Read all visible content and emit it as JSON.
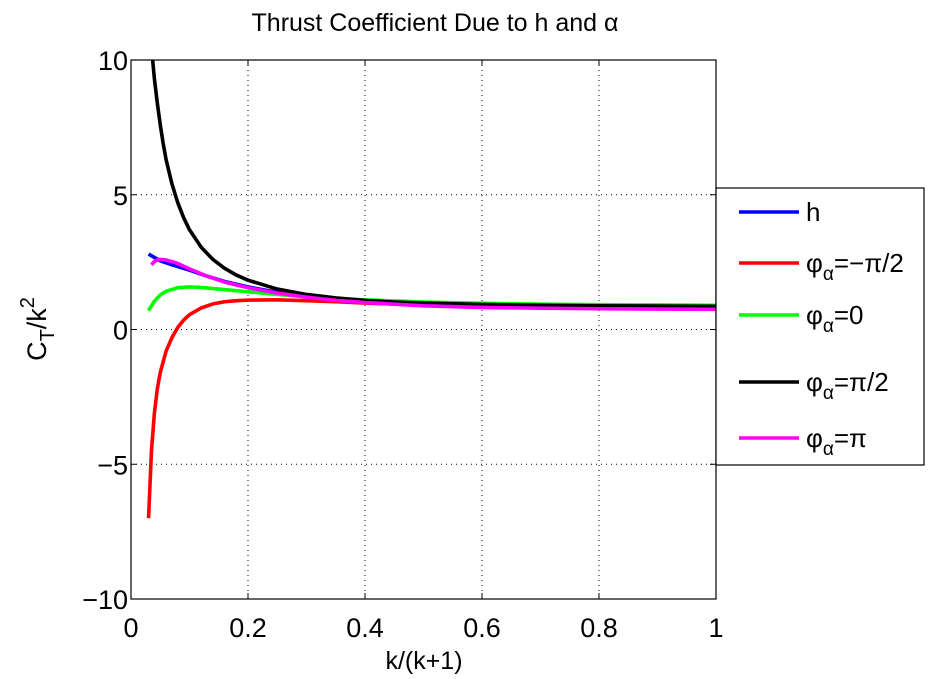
{
  "chart_data": {
    "type": "line",
    "title_parts": {
      "pre": "Thrust Coefficient Due to h and ",
      "sym": "α"
    },
    "xlabel": "k/(k+1)",
    "ylabel_parts": {
      "c": "C",
      "csub": "T",
      "mid": "/k",
      "sup": "2"
    },
    "xlim": [
      0,
      1
    ],
    "ylim": [
      -10,
      10
    ],
    "x_ticks": [
      0,
      0.2,
      0.4,
      0.6,
      0.8,
      1
    ],
    "x_tick_labels": [
      "0",
      "0.2",
      "0.4",
      "0.6",
      "0.8",
      "1"
    ],
    "y_ticks": [
      -10,
      -5,
      0,
      5,
      10
    ],
    "y_tick_labels": [
      "−10",
      "−5",
      "0",
      "5",
      "10"
    ],
    "grid": true,
    "legend_placement": "outside-right",
    "series": [
      {
        "name": "h",
        "legend": {
          "base": "h",
          "sub": "",
          "suffix": ""
        },
        "color": "#0000ff",
        "x": [
          0.03,
          0.05,
          0.07,
          0.1,
          0.13,
          0.16,
          0.2,
          0.25,
          0.3,
          0.35,
          0.4,
          0.5,
          0.6,
          0.7,
          0.8,
          0.9,
          1.0
        ],
        "y": [
          2.8,
          2.55,
          2.4,
          2.2,
          1.98,
          1.78,
          1.58,
          1.38,
          1.22,
          1.1,
          1.02,
          0.9,
          0.84,
          0.8,
          0.78,
          0.77,
          0.76
        ]
      },
      {
        "name": "φα=−π/2",
        "legend": {
          "base": "φ",
          "sub": "α",
          "suffix": "=−π/2"
        },
        "color": "#ff0000",
        "x": [
          0.03,
          0.035,
          0.04,
          0.045,
          0.05,
          0.06,
          0.07,
          0.08,
          0.09,
          0.1,
          0.12,
          0.14,
          0.16,
          0.18,
          0.2,
          0.25,
          0.3,
          0.35,
          0.4,
          0.5,
          0.6,
          0.7,
          0.8,
          0.9,
          1.0
        ],
        "y": [
          -7.0,
          -4.5,
          -3.1,
          -2.2,
          -1.6,
          -0.8,
          -0.3,
          0.08,
          0.35,
          0.55,
          0.8,
          0.95,
          1.03,
          1.07,
          1.09,
          1.1,
          1.07,
          1.03,
          0.98,
          0.91,
          0.86,
          0.83,
          0.8,
          0.78,
          0.77
        ]
      },
      {
        "name": "φα=0",
        "legend": {
          "base": "φ",
          "sub": "α",
          "suffix": "=0"
        },
        "color": "#00ff00",
        "x": [
          0.03,
          0.04,
          0.05,
          0.06,
          0.08,
          0.1,
          0.12,
          0.15,
          0.2,
          0.25,
          0.3,
          0.4,
          0.5,
          0.6,
          0.7,
          0.8,
          0.9,
          1.0
        ],
        "y": [
          0.7,
          1.05,
          1.28,
          1.42,
          1.55,
          1.58,
          1.56,
          1.5,
          1.4,
          1.3,
          1.22,
          1.1,
          1.02,
          0.97,
          0.94,
          0.92,
          0.91,
          0.9
        ]
      },
      {
        "name": "φα=π/2",
        "legend": {
          "base": "φ",
          "sub": "α",
          "suffix": "=π/2"
        },
        "color": "#000000",
        "x": [
          0.037,
          0.04,
          0.045,
          0.05,
          0.055,
          0.06,
          0.07,
          0.08,
          0.09,
          0.1,
          0.12,
          0.14,
          0.16,
          0.18,
          0.2,
          0.25,
          0.3,
          0.35,
          0.4,
          0.45,
          0.5,
          0.6,
          0.7,
          0.8,
          0.9,
          1.0
        ],
        "y": [
          10.0,
          9.3,
          8.4,
          7.6,
          6.9,
          6.3,
          5.4,
          4.7,
          4.15,
          3.7,
          3.05,
          2.6,
          2.27,
          2.02,
          1.83,
          1.5,
          1.3,
          1.17,
          1.08,
          1.02,
          0.98,
          0.93,
          0.9,
          0.88,
          0.87,
          0.86
        ]
      },
      {
        "name": "φα=π",
        "legend": {
          "base": "φ",
          "sub": "α",
          "suffix": "=π"
        },
        "color": "#ff00ff",
        "x": [
          0.035,
          0.04,
          0.045,
          0.05,
          0.06,
          0.07,
          0.08,
          0.1,
          0.13,
          0.16,
          0.2,
          0.25,
          0.3,
          0.35,
          0.4,
          0.5,
          0.6,
          0.7,
          0.8,
          0.9,
          1.0
        ],
        "y": [
          2.4,
          2.52,
          2.58,
          2.6,
          2.58,
          2.52,
          2.45,
          2.25,
          1.98,
          1.76,
          1.55,
          1.35,
          1.2,
          1.08,
          1.0,
          0.88,
          0.82,
          0.79,
          0.77,
          0.76,
          0.75
        ]
      }
    ]
  }
}
